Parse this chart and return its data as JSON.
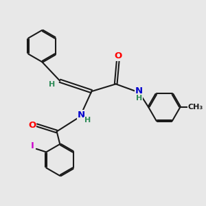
{
  "bg_color": "#e8e8e8",
  "bond_color": "#1a1a1a",
  "bond_width": 1.5,
  "atom_colors": {
    "O": "#ff0000",
    "N": "#0000cd",
    "I": "#cc00cc",
    "H": "#2e8b57",
    "C": "#1a1a1a"
  },
  "font_size_atom": 9.5,
  "font_size_h": 8.0,
  "font_size_me": 8.0
}
